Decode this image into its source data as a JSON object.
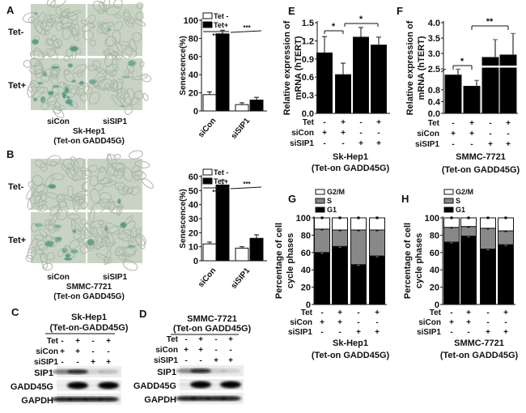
{
  "panels": {
    "A": {
      "label": "A",
      "rows": [
        "Tet-",
        "Tet+"
      ],
      "cols": [
        "siCon",
        "siSIP1"
      ],
      "cell": "Sk-Hep1",
      "construct": "(Tet-on GADD45G)"
    },
    "B": {
      "label": "B",
      "rows": [
        "Tet-",
        "Tet+"
      ],
      "cols": [
        "siCon",
        "siSIP1"
      ],
      "cell": "SMMC-7721",
      "construct": "(Tet-on GADD45G)"
    },
    "C": {
      "label": "C",
      "cell": "Sk-Hep1",
      "construct": "(Tet-on-GADD45G)",
      "factors": [
        "Tet",
        "siCon",
        "siSIP1"
      ],
      "signs": [
        [
          "-",
          "+",
          "-",
          "+"
        ],
        [
          "+",
          "+",
          "-",
          "-"
        ],
        [
          "-",
          "-",
          "+",
          "+"
        ]
      ],
      "bands": [
        "SIP1",
        "GADD45G",
        "GAPDH"
      ]
    },
    "D": {
      "label": "D",
      "cell": "SMMC-7721",
      "construct": "(Tet-on GADD45G)",
      "factors": [
        "Tet",
        "siCon",
        "siSIP1"
      ],
      "signs": [
        [
          "-",
          "+",
          "-",
          "+"
        ],
        [
          "+",
          "+",
          "-",
          "-"
        ],
        [
          "-",
          "-",
          "+",
          "+"
        ]
      ],
      "bands": [
        "SIP1",
        "GADD45G",
        "GAPDH"
      ]
    },
    "E": {
      "label": "E"
    },
    "F": {
      "label": "F"
    },
    "G": {
      "label": "G"
    },
    "H": {
      "label": "H"
    }
  },
  "blot_intensity": {
    "C": {
      "SIP1": [
        0.5,
        0.85,
        0.12,
        0.2
      ],
      "GADD45G": [
        0.05,
        1,
        0.05,
        1
      ],
      "GAPDH": [
        0.9,
        0.9,
        0.9,
        0.9
      ]
    },
    "D": {
      "SIP1": [
        0.45,
        0.85,
        0.15,
        0.12
      ],
      "GADD45G": [
        0.1,
        1,
        0.05,
        1
      ],
      "GAPDH": [
        0.9,
        0.9,
        0.9,
        0.9
      ]
    }
  },
  "chart_data": [
    {
      "id": "A",
      "type": "bar",
      "ylabel": "Senescence(%)",
      "categories": [
        "siCon",
        "siSIP1"
      ],
      "ylim": [
        0,
        100
      ],
      "yticks": [
        "0",
        "20",
        "40",
        "60",
        "80",
        "100"
      ],
      "series": [
        {
          "name": "Tet -",
          "values": [
            18,
            7
          ],
          "errors": [
            3,
            2
          ],
          "color": "#ffffff"
        },
        {
          "name": "Tet+",
          "values": [
            85,
            12
          ],
          "errors": [
            4,
            3
          ],
          "color": "#000000"
        }
      ],
      "significance": [
        "***",
        "***"
      ],
      "legend": "top-left"
    },
    {
      "id": "B",
      "type": "bar",
      "ylabel": "Senescence(%)",
      "categories": [
        "siCon",
        "siSIP1"
      ],
      "ylim": [
        0,
        60
      ],
      "yticks": [
        "0",
        "10",
        "20",
        "30",
        "40",
        "50",
        "60"
      ],
      "series": [
        {
          "name": "Tet -",
          "values": [
            12,
            9
          ],
          "errors": [
            1.3,
            1
          ],
          "color": "#ffffff"
        },
        {
          "name": "Tet+",
          "values": [
            54,
            16
          ],
          "errors": [
            3.5,
            2.5
          ],
          "color": "#000000"
        }
      ],
      "significance": [
        "***",
        "***"
      ],
      "legend": "top-left"
    },
    {
      "id": "E",
      "type": "bar",
      "ylabel": [
        "Relative expression of",
        "mRNA (hTERT)"
      ],
      "ylim": [
        0,
        1.5
      ],
      "yticks": [
        "0.0",
        "0.3",
        "0.6",
        "0.9",
        "1.2",
        "1.5"
      ],
      "values": [
        1.0,
        0.64,
        1.26,
        1.13
      ],
      "errors": [
        0.27,
        0.19,
        0.16,
        0.13
      ],
      "color": "#000000",
      "factors": [
        "Tet",
        "siCon",
        "siSIP1"
      ],
      "signs": [
        [
          "-",
          "+",
          "-",
          "+"
        ],
        [
          "+",
          "+",
          "-",
          "-"
        ],
        [
          "-",
          "-",
          "+",
          "+"
        ]
      ],
      "significance": [
        "*",
        "*"
      ],
      "xlabel": [
        "Sk-Hep1",
        "(Tet-on GADD45G)"
      ]
    },
    {
      "id": "F",
      "type": "bar",
      "ylabel": [
        "Relative expression of",
        "mRNA (hTERT)"
      ],
      "broken_axis": true,
      "yticks_lower": [
        "0.0",
        "0.4",
        "0.8"
      ],
      "yticks_upper": [
        "2.5",
        "3.0",
        "3.5",
        "4.0"
      ],
      "values": [
        1.3,
        0.92,
        2.87,
        2.95
      ],
      "errors": [
        0.2,
        0.2,
        0.58,
        0.7
      ],
      "color": "#000000",
      "factors": [
        "Tet",
        "siCon",
        "siSIP1"
      ],
      "signs": [
        [
          "-",
          "+",
          "-",
          "+"
        ],
        [
          "+",
          "+",
          "-",
          "-"
        ],
        [
          "-",
          "-",
          "+",
          "+"
        ]
      ],
      "significance": [
        "*",
        "**"
      ],
      "xlabel": [
        "SMMC-7721",
        "(Tet-on GADD45G)"
      ]
    },
    {
      "id": "G",
      "type": "bar",
      "stacked": true,
      "ylabel": [
        "Percentage of cell",
        "cycle phases"
      ],
      "ylim": [
        0,
        100
      ],
      "yticks": [
        "0",
        "20",
        "40",
        "60",
        "80",
        "100"
      ],
      "series": [
        {
          "name": "G1",
          "values": [
            60,
            67,
            46,
            56
          ],
          "color": "#000000"
        },
        {
          "name": "S",
          "values": [
            27,
            19,
            40,
            30
          ],
          "color": "#888888"
        },
        {
          "name": "G2/M",
          "values": [
            13,
            14,
            14,
            14
          ],
          "color": "#ffffff"
        }
      ],
      "factors": [
        "Tet",
        "siCon",
        "siSIP1"
      ],
      "signs": [
        [
          "-",
          "+",
          "-",
          "+"
        ],
        [
          "+",
          "+",
          "-",
          "-"
        ],
        [
          "-",
          "-",
          "+",
          "+"
        ]
      ],
      "xlabel": [
        "Sk-Hep1",
        "(Tet-on GADD45G)"
      ],
      "legend": "top-left"
    },
    {
      "id": "H",
      "type": "bar",
      "stacked": true,
      "ylabel": [
        "Percentage of cell",
        "cycle phases"
      ],
      "ylim": [
        0,
        100
      ],
      "yticks": [
        "0",
        "20",
        "40",
        "60",
        "80",
        "100"
      ],
      "series": [
        {
          "name": "G1",
          "values": [
            72,
            79,
            64,
            69
          ],
          "color": "#000000"
        },
        {
          "name": "S",
          "values": [
            17,
            11,
            24,
            16
          ],
          "color": "#888888"
        },
        {
          "name": "G2/M",
          "values": [
            11,
            10,
            12,
            15
          ],
          "color": "#ffffff"
        }
      ],
      "factors": [
        "Tet",
        "siCon",
        "siSIP1"
      ],
      "signs": [
        [
          "-",
          "+",
          "-",
          "+"
        ],
        [
          "+",
          "+",
          "-",
          "-"
        ],
        [
          "-",
          "-",
          "+",
          "+"
        ]
      ],
      "xlabel": [
        "SMMC-7721",
        "(Tet-on GADD45G)"
      ],
      "legend": "top-left"
    }
  ]
}
